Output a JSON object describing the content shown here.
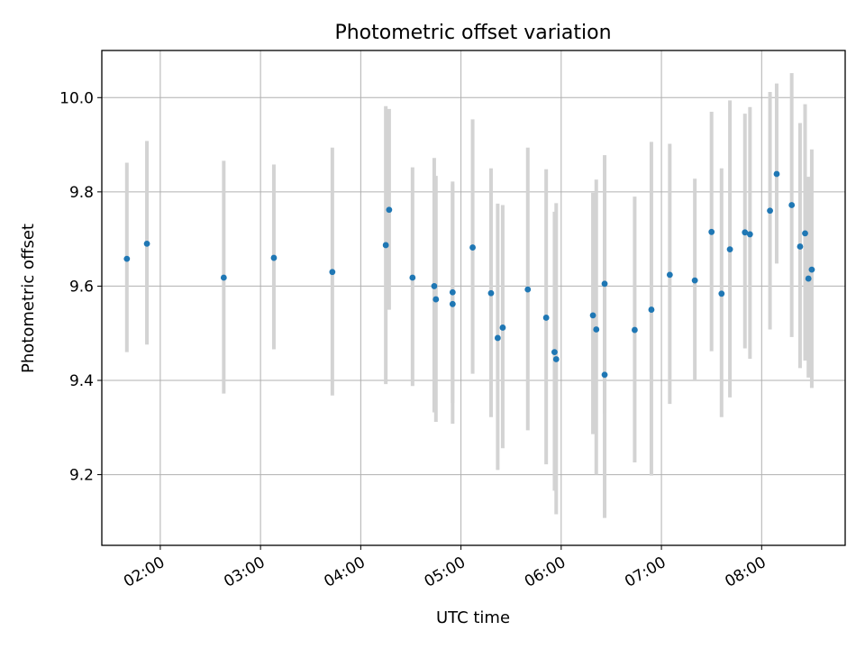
{
  "chart_data": {
    "type": "scatter",
    "title": "Photometric offset variation",
    "xlabel": "UTC time",
    "ylabel": "Photometric offset",
    "x_ticks": [
      "02:00",
      "03:00",
      "04:00",
      "05:00",
      "06:00",
      "07:00",
      "08:00"
    ],
    "y_ticks": [
      "9.2",
      "9.4",
      "9.6",
      "9.8",
      "10.0"
    ],
    "xlim": [
      "01:25",
      "08:50"
    ],
    "ylim": [
      9.05,
      10.1
    ],
    "grid": true,
    "colors": {
      "point": "#1f77b4",
      "errorbar": "#d3d3d3",
      "grid": "#b0b0b0"
    },
    "points": [
      {
        "x": "01:40",
        "y": 9.658,
        "ylo": 9.46,
        "yhi": 9.862
      },
      {
        "x": "01:52",
        "y": 9.69,
        "ylo": 9.476,
        "yhi": 9.908
      },
      {
        "x": "02:38",
        "y": 9.618,
        "ylo": 9.372,
        "yhi": 9.866
      },
      {
        "x": "03:08",
        "y": 9.66,
        "ylo": 9.466,
        "yhi": 9.858
      },
      {
        "x": "03:43",
        "y": 9.63,
        "ylo": 9.368,
        "yhi": 9.894
      },
      {
        "x": "04:15",
        "y": 9.687,
        "ylo": 9.392,
        "yhi": 9.982
      },
      {
        "x": "04:17",
        "y": 9.762,
        "ylo": 9.55,
        "yhi": 9.976
      },
      {
        "x": "04:31",
        "y": 9.618,
        "ylo": 9.388,
        "yhi": 9.852
      },
      {
        "x": "04:44",
        "y": 9.6,
        "ylo": 9.332,
        "yhi": 9.872
      },
      {
        "x": "04:45",
        "y": 9.572,
        "ylo": 9.312,
        "yhi": 9.834
      },
      {
        "x": "04:55",
        "y": 9.587,
        "ylo": 9.352,
        "yhi": 9.822
      },
      {
        "x": "04:55",
        "y": 9.562,
        "ylo": 9.308,
        "yhi": 9.816
      },
      {
        "x": "05:07",
        "y": 9.682,
        "ylo": 9.414,
        "yhi": 9.954
      },
      {
        "x": "05:18",
        "y": 9.585,
        "ylo": 9.322,
        "yhi": 9.85
      },
      {
        "x": "05:22",
        "y": 9.49,
        "ylo": 9.21,
        "yhi": 9.775
      },
      {
        "x": "05:25",
        "y": 9.512,
        "ylo": 9.256,
        "yhi": 9.772
      },
      {
        "x": "05:40",
        "y": 9.593,
        "ylo": 9.294,
        "yhi": 9.894
      },
      {
        "x": "05:51",
        "y": 9.533,
        "ylo": 9.222,
        "yhi": 9.848
      },
      {
        "x": "05:56",
        "y": 9.46,
        "ylo": 9.166,
        "yhi": 9.758
      },
      {
        "x": "05:57",
        "y": 9.445,
        "ylo": 9.116,
        "yhi": 9.776
      },
      {
        "x": "06:19",
        "y": 9.538,
        "ylo": 9.286,
        "yhi": 9.798
      },
      {
        "x": "06:21",
        "y": 9.508,
        "ylo": 9.2,
        "yhi": 9.826
      },
      {
        "x": "06:26",
        "y": 9.605,
        "ylo": 9.33,
        "yhi": 9.878
      },
      {
        "x": "06:26",
        "y": 9.412,
        "ylo": 9.108,
        "yhi": 9.72
      },
      {
        "x": "06:44",
        "y": 9.507,
        "ylo": 9.226,
        "yhi": 9.79
      },
      {
        "x": "06:54",
        "y": 9.55,
        "ylo": 9.198,
        "yhi": 9.906
      },
      {
        "x": "07:05",
        "y": 9.624,
        "ylo": 9.35,
        "yhi": 9.902
      },
      {
        "x": "07:20",
        "y": 9.612,
        "ylo": 9.4,
        "yhi": 9.828
      },
      {
        "x": "07:30",
        "y": 9.715,
        "ylo": 9.462,
        "yhi": 9.97
      },
      {
        "x": "07:36",
        "y": 9.584,
        "ylo": 9.322,
        "yhi": 9.85
      },
      {
        "x": "07:41",
        "y": 9.678,
        "ylo": 9.364,
        "yhi": 9.994
      },
      {
        "x": "07:50",
        "y": 9.714,
        "ylo": 9.468,
        "yhi": 9.966
      },
      {
        "x": "07:53",
        "y": 9.71,
        "ylo": 9.446,
        "yhi": 9.98
      },
      {
        "x": "08:05",
        "y": 9.76,
        "ylo": 9.508,
        "yhi": 10.012
      },
      {
        "x": "08:09",
        "y": 9.838,
        "ylo": 9.648,
        "yhi": 10.03
      },
      {
        "x": "08:18",
        "y": 9.772,
        "ylo": 9.492,
        "yhi": 10.052
      },
      {
        "x": "08:23",
        "y": 9.684,
        "ylo": 9.426,
        "yhi": 9.946
      },
      {
        "x": "08:26",
        "y": 9.712,
        "ylo": 9.442,
        "yhi": 9.986
      },
      {
        "x": "08:28",
        "y": 9.616,
        "ylo": 9.406,
        "yhi": 9.832
      },
      {
        "x": "08:30",
        "y": 9.635,
        "ylo": 9.384,
        "yhi": 9.89
      }
    ]
  }
}
